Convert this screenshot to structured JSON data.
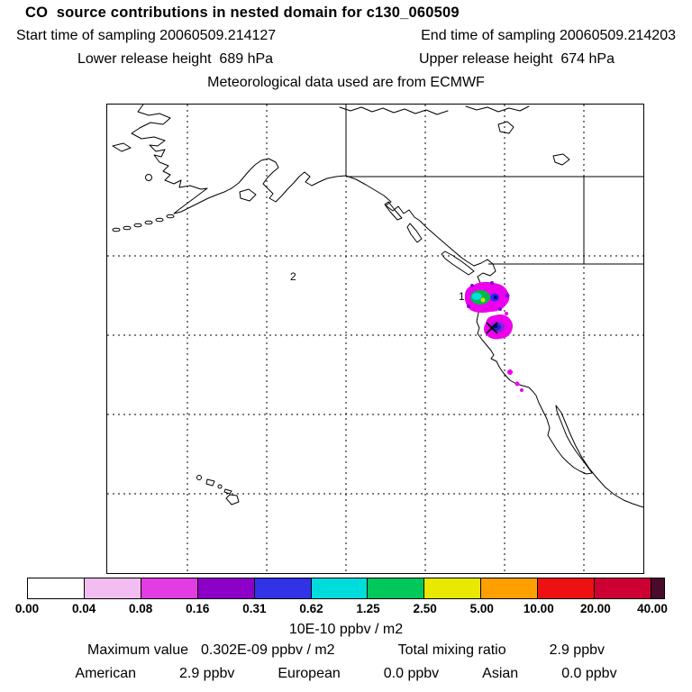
{
  "header": {
    "title": "CO  source contributions in nested domain for c130_060509",
    "start_time": "Start time of sampling 20060509.214127",
    "end_time": "End time of sampling 20060509.214203",
    "lower_release": "Lower release height  689 hPa",
    "upper_release": "Upper release height  674 hPa",
    "met_source": "Meteorological data used are from ECMWF"
  },
  "map": {
    "labels": [
      {
        "text": "1"
      },
      {
        "text": "2"
      }
    ]
  },
  "colorbar": {
    "ticks": [
      "0.00",
      "0.04",
      "0.08",
      "0.16",
      "0.31",
      "0.62",
      "1.25",
      "2.50",
      "5.00",
      "10.00",
      "20.00",
      "40.00"
    ],
    "segments": [
      "#ffffff",
      "#f2bef2",
      "#e23ce2",
      "#8c00c8",
      "#3232e6",
      "#00dcdc",
      "#00c85a",
      "#e8e800",
      "#ffa000",
      "#ee1111",
      "#cc0033",
      "#4a0a2a"
    ],
    "unit_label": "10E-10 ppbv / m2"
  },
  "footer": {
    "max_label": "Maximum value",
    "max_value": "0.302E-09 ppbv / m2",
    "total_label": "Total mixing ratio",
    "total_value": "2.9 ppbv",
    "regions": [
      {
        "name": "American",
        "value": "2.9 ppbv"
      },
      {
        "name": "European",
        "value": "0.0 ppbv"
      },
      {
        "name": "Asian",
        "value": "0.0 ppbv"
      }
    ]
  },
  "chart_data": {
    "type": "heatmap",
    "title": "CO source contributions in nested domain for c130_060509",
    "subtitle_lines": [
      "Start time of sampling 20060509.214127",
      "End time of sampling 20060509.214203",
      "Lower release height 689 hPa",
      "Upper release height 674 hPa",
      "Meteorological data used are from ECMWF"
    ],
    "map_region": "North Pacific / Alaska / western North America with Hawaii, coastlines and dashed 10-degree lat-lon gridlines",
    "colorbar_levels": [
      0.0,
      0.04,
      0.08,
      0.16,
      0.31,
      0.62,
      1.25,
      2.5,
      5.0,
      10.0,
      20.0,
      40.0
    ],
    "colorbar_unit": "10E-10 ppbv / m2",
    "colorbar_colors": [
      "#ffffff",
      "#f2bef2",
      "#e23ce2",
      "#8c00c8",
      "#3232e6",
      "#00dcdc",
      "#00c85a",
      "#e8e800",
      "#ffa000",
      "#ee1111",
      "#cc0033",
      "#4a0a2a"
    ],
    "hotspots": [
      {
        "label": "1",
        "location": "near Oregon / northern California coast",
        "core_colors": [
          "green",
          "cyan",
          "blue"
        ],
        "ring_color": "magenta"
      },
      {
        "label": "x sampling marker",
        "location": "northern California, slightly inland of coast",
        "core_colors": [
          "blue",
          "purple"
        ],
        "ring_color": "magenta"
      },
      {
        "label": "2",
        "location": "open NE Pacific (numeric label only)"
      }
    ],
    "maximum_value": "0.302E-09 ppbv / m2",
    "total_mixing_ratio_ppbv": 2.9,
    "source_contributions_ppbv": {
      "American": 2.9,
      "European": 0.0,
      "Asian": 0.0
    }
  }
}
